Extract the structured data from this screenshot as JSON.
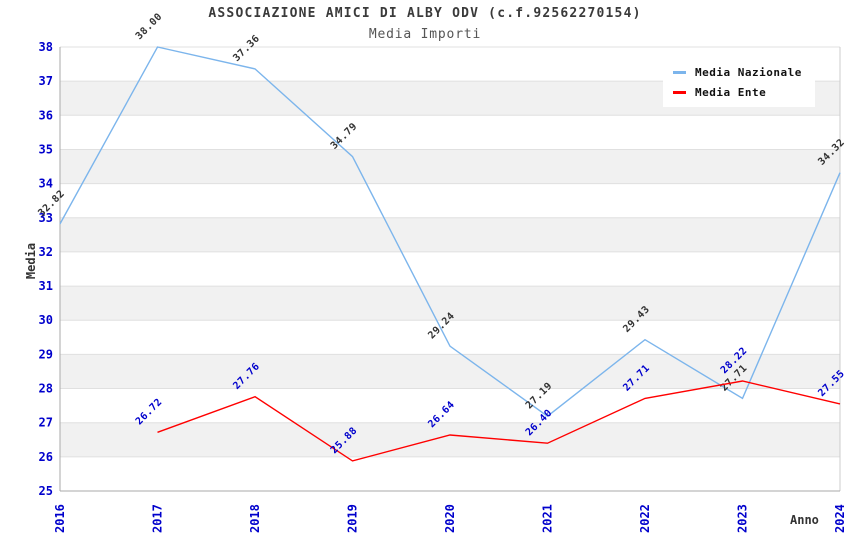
{
  "header": {
    "title": "ASSOCIAZIONE AMICI DI ALBY ODV (c.f.92562270154)",
    "subtitle": "Media Importi"
  },
  "chart_data": {
    "type": "line",
    "x": [
      "2016",
      "2017",
      "2018",
      "2019",
      "2020",
      "2021",
      "2022",
      "2023",
      "2024"
    ],
    "series": [
      {
        "name": "Media Nazionale",
        "color": "#7CB5EC",
        "label_color": "#333333",
        "values": [
          32.82,
          38.0,
          37.36,
          34.79,
          29.24,
          27.19,
          29.43,
          27.71,
          34.32
        ]
      },
      {
        "name": "Media Ente",
        "color": "#FF0000",
        "label_color": "#0000CC",
        "values": [
          null,
          26.72,
          27.76,
          25.88,
          26.64,
          26.4,
          27.71,
          28.22,
          27.55
        ]
      }
    ],
    "xlabel": "Anno",
    "ylabel": "Media",
    "ylim": [
      25,
      38
    ],
    "y_tick_step": 1,
    "grid": true,
    "legend_position": "top-right",
    "colors": {
      "axis": "#AAAAAA",
      "tick_label": "#0000CC",
      "band": "#F1F1F1",
      "gridline": "#E0E0E0",
      "plot_right_border": "#CCCCCC"
    }
  }
}
